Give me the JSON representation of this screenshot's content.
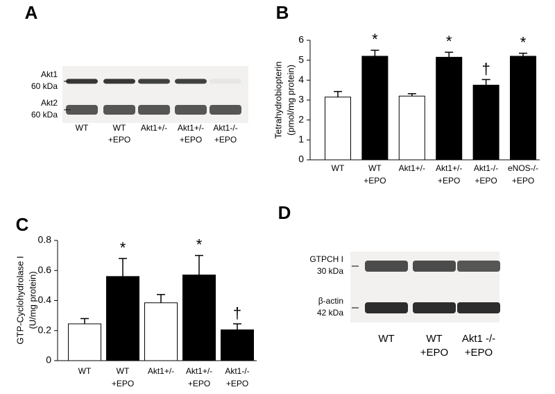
{
  "chart_data": [
    {
      "type": "bar",
      "label": "B",
      "ylabel": [
        "Tetrahydrobiopterin",
        "(pmol/mg protein)"
      ],
      "categories": [
        [
          "WT"
        ],
        [
          "WT",
          "+EPO"
        ],
        [
          "Akt1+/-"
        ],
        [
          "Akt1+/-",
          "+EPO"
        ],
        [
          "Akt1-/-",
          "+EPO"
        ],
        [
          "eNOS-/-",
          "+EPO"
        ]
      ],
      "values": [
        3.15,
        5.2,
        3.2,
        5.15,
        3.75,
        5.2
      ],
      "errors": [
        0.28,
        0.3,
        0.12,
        0.25,
        0.28,
        0.15
      ],
      "colors": [
        "#ffffff",
        "#000000",
        "#ffffff",
        "#000000",
        "#000000",
        "#000000"
      ],
      "annotations": [
        null,
        "*",
        null,
        "*",
        "†",
        "*"
      ],
      "ylim": [
        0,
        6
      ],
      "yticks": [
        0,
        1,
        2,
        3,
        4,
        5,
        6
      ]
    },
    {
      "type": "bar",
      "label": "C",
      "ylabel": [
        "GTP-Cyclohydrolase I",
        "(U/mg protein)"
      ],
      "categories": [
        [
          "WT"
        ],
        [
          "WT",
          "+EPO"
        ],
        [
          "Akt1+/-"
        ],
        [
          "Akt1+/-",
          "+EPO"
        ],
        [
          "Akt1-/-",
          "+EPO"
        ]
      ],
      "values": [
        0.245,
        0.56,
        0.385,
        0.57,
        0.205
      ],
      "errors": [
        0.035,
        0.12,
        0.055,
        0.13,
        0.04
      ],
      "colors": [
        "#ffffff",
        "#000000",
        "#ffffff",
        "#000000",
        "#000000"
      ],
      "annotations": [
        null,
        "*",
        null,
        "*",
        "†"
      ],
      "ylim": [
        0,
        0.8
      ],
      "yticks": [
        0,
        0.2,
        0.4,
        0.6,
        0.8
      ]
    }
  ],
  "blots": [
    {
      "label": "A",
      "bands": [
        [
          "Akt1",
          "60 kDa"
        ],
        [
          "Akt2",
          "60 kDa"
        ]
      ],
      "lanes": [
        [
          "WT"
        ],
        [
          "WT",
          "+EPO"
        ],
        [
          "Akt1+/-"
        ],
        [
          "Akt1+/-",
          "+EPO"
        ],
        [
          "Akt1-/-",
          "+EPO"
        ]
      ]
    },
    {
      "label": "D",
      "bands": [
        [
          "GTPCH I",
          "30 kDa"
        ],
        [
          "β-actin",
          "42 kDa"
        ]
      ],
      "lanes": [
        [
          "WT"
        ],
        [
          "WT",
          "+EPO"
        ],
        [
          "Akt1 -/-",
          "+EPO"
        ]
      ]
    }
  ]
}
